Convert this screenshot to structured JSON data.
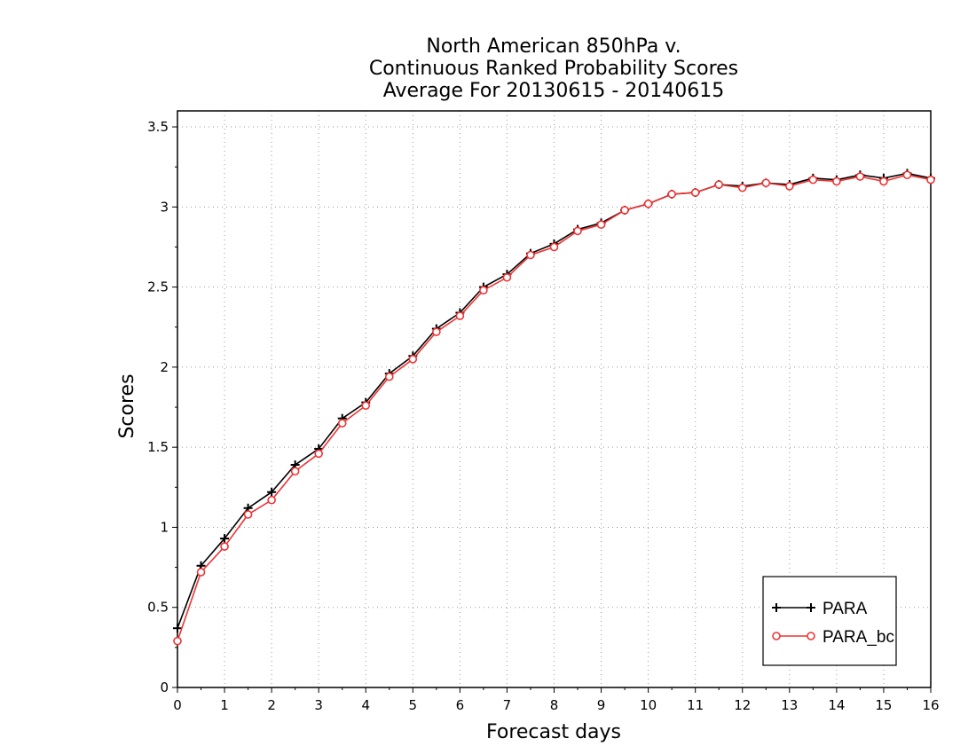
{
  "chart_data": {
    "type": "line",
    "title": [
      "North American 850hPa v.",
      "Continuous Ranked Probability Scores",
      "Average For 20130615 - 20140615"
    ],
    "xlabel": "Forecast days",
    "ylabel": "Scores",
    "xlim": [
      0,
      16
    ],
    "ylim": [
      0,
      3.6
    ],
    "xticks": [
      "0",
      "1",
      "2",
      "3",
      "4",
      "5",
      "6",
      "7",
      "8",
      "9",
      "10",
      "11",
      "12",
      "13",
      "14",
      "15",
      "16"
    ],
    "yticks": [
      "0",
      "0.5",
      "1",
      "1.5",
      "2",
      "2.5",
      "3",
      "3.5"
    ],
    "grid": true,
    "legend_position": "bottom-right",
    "x": [
      0,
      0.5,
      1,
      1.5,
      2,
      2.5,
      3,
      3.5,
      4,
      4.5,
      5,
      5.5,
      6,
      6.5,
      7,
      7.5,
      8,
      8.5,
      9,
      9.5,
      10,
      10.5,
      11,
      11.5,
      12,
      12.5,
      13,
      13.5,
      14,
      14.5,
      15,
      15.5,
      16
    ],
    "series": [
      {
        "name": "PARA",
        "color": "#000000",
        "marker": "plus",
        "values": [
          0.37,
          0.76,
          0.93,
          1.12,
          1.22,
          1.39,
          1.49,
          1.68,
          1.78,
          1.96,
          2.07,
          2.24,
          2.34,
          2.5,
          2.58,
          2.71,
          2.77,
          2.86,
          2.9,
          2.98,
          3.02,
          3.08,
          3.09,
          3.14,
          3.13,
          3.15,
          3.14,
          3.18,
          3.17,
          3.2,
          3.18,
          3.21,
          3.18
        ]
      },
      {
        "name": "PARA_bc",
        "color": "#ee3333",
        "marker": "circle",
        "values": [
          0.29,
          0.72,
          0.88,
          1.08,
          1.17,
          1.35,
          1.46,
          1.65,
          1.76,
          1.94,
          2.05,
          2.22,
          2.32,
          2.48,
          2.56,
          2.7,
          2.75,
          2.85,
          2.89,
          2.98,
          3.02,
          3.08,
          3.09,
          3.14,
          3.12,
          3.15,
          3.13,
          3.17,
          3.16,
          3.19,
          3.16,
          3.2,
          3.17
        ]
      }
    ]
  }
}
